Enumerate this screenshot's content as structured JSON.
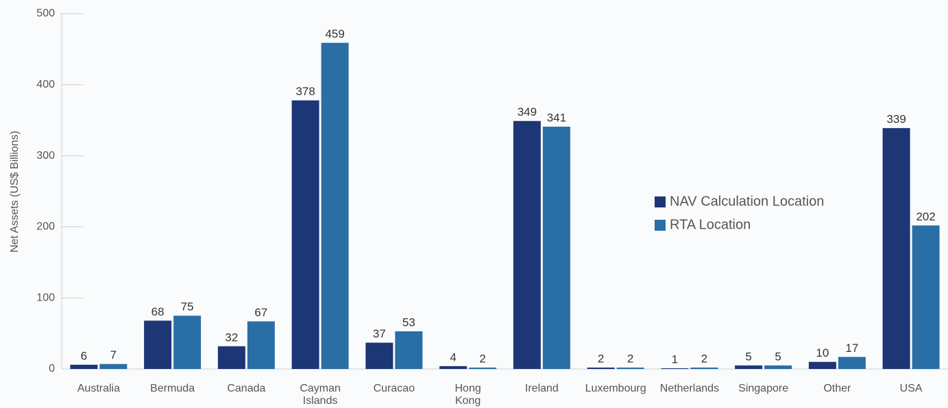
{
  "chart_data": {
    "type": "bar",
    "y_label": "Net Assets (US$ Billions)",
    "categories": [
      "Australia",
      "Bermuda",
      "Canada",
      "Cayman Islands",
      "Curacao",
      "Hong Kong",
      "Ireland",
      "Luxembourg",
      "Netherlands",
      "Singapore",
      "Other",
      "USA"
    ],
    "series": [
      {
        "name": "NAV Calculation Location",
        "color": "#1d3675",
        "values": [
          6,
          68,
          32,
          378,
          37,
          4,
          349,
          2,
          1,
          5,
          10,
          339
        ]
      },
      {
        "name": "RTA Location",
        "color": "#2a6ea6",
        "values": [
          7,
          75,
          67,
          459,
          53,
          2,
          341,
          2,
          2,
          5,
          17,
          202
        ]
      }
    ],
    "ylim": [
      0,
      500
    ],
    "yticks": [
      0,
      100,
      200,
      300,
      400,
      500
    ],
    "grid": false,
    "legend": "right"
  }
}
